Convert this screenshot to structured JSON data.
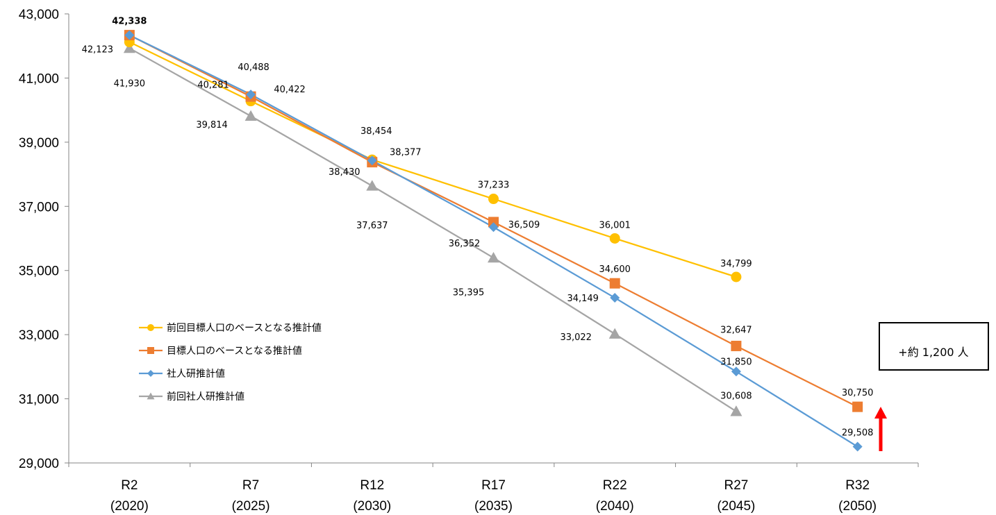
{
  "chart_data": {
    "type": "line",
    "categories": [
      {
        "label": "R2",
        "sub": "(2020)"
      },
      {
        "label": "R7",
        "sub": "(2025)"
      },
      {
        "label": "R12",
        "sub": "(2030)"
      },
      {
        "label": "R17",
        "sub": "(2035)"
      },
      {
        "label": "R22",
        "sub": "(2040)"
      },
      {
        "label": "R27",
        "sub": "(2045)"
      },
      {
        "label": "R32",
        "sub": "(2050)"
      }
    ],
    "ylim": [
      29000,
      43000
    ],
    "yticks": [
      29000,
      31000,
      33000,
      35000,
      37000,
      39000,
      41000,
      43000
    ],
    "ytick_labels": [
      "29,000",
      "31,000",
      "33,000",
      "35,000",
      "37,000",
      "39,000",
      "41,000",
      "43,000"
    ],
    "series": [
      {
        "name": "前回目標人口のベースとなる推計値",
        "color": "#FFC000",
        "marker": "circle",
        "values": [
          42123,
          40281,
          38454,
          37233,
          36001,
          34799,
          null
        ],
        "labels": [
          "42,123",
          "40,281",
          "38,454",
          "37,233",
          "36,001",
          "34,799",
          null
        ]
      },
      {
        "name": "目標人口のベースとなる推計値",
        "color": "#ED7D31",
        "marker": "square",
        "values": [
          42338,
          40422,
          38377,
          36509,
          34600,
          32647,
          30750
        ],
        "labels": [
          "42,338",
          "40,422",
          "38,377",
          "36,509",
          "34,600",
          "32,647",
          "30,750"
        ]
      },
      {
        "name": "社人研推計値",
        "color": "#5B9BD5",
        "marker": "diamond",
        "values": [
          42338,
          40488,
          38430,
          36352,
          34149,
          31850,
          29508
        ],
        "labels": [
          null,
          "40,488",
          "38,430",
          "36,352",
          "34,149",
          "31,850",
          "29,508"
        ]
      },
      {
        "name": "前回社人研推計値",
        "color": "#A5A5A5",
        "marker": "triangle",
        "values": [
          41930,
          39814,
          37637,
          35395,
          33022,
          30608,
          null
        ],
        "labels": [
          "41,930",
          "39,814",
          "37,637",
          "35,395",
          "33,022",
          "30,608",
          null
        ]
      }
    ],
    "annotation": {
      "text": "+約 1,200 人",
      "arrow_color": "#FF0000"
    },
    "legend_position": "lower-left"
  }
}
